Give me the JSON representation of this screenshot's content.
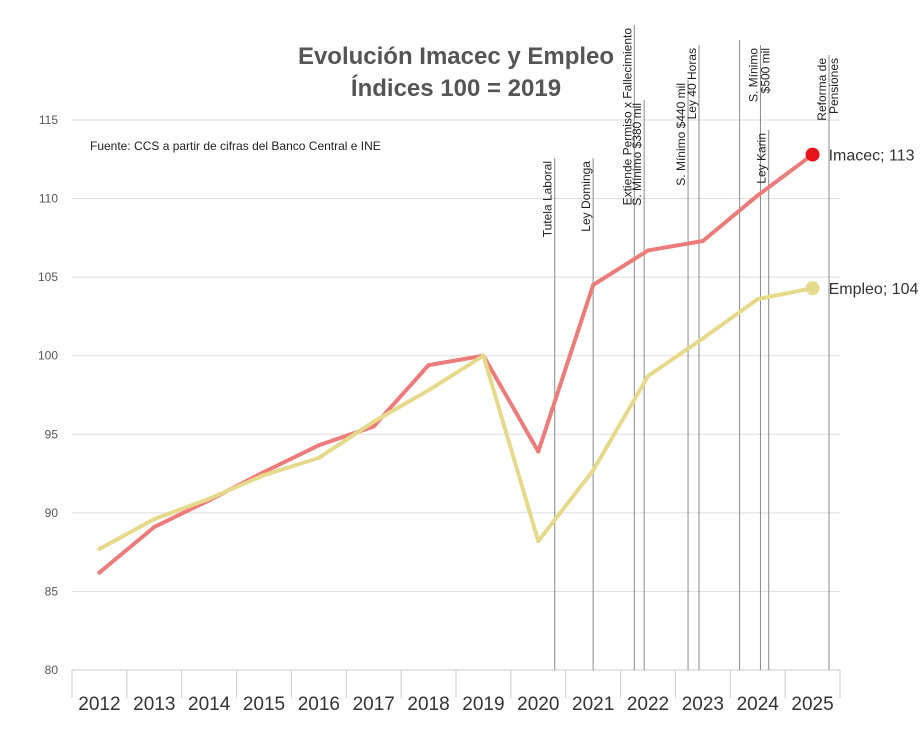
{
  "chart_data": {
    "type": "line",
    "title": [
      "Evolución Imacec y Empleo",
      "Índices 100 = 2019"
    ],
    "source_note": "Fuente: CCS a partir de cifras del Banco Central e INE",
    "ylim": [
      80,
      115
    ],
    "yticks": [
      "80",
      "85",
      "90",
      "95",
      "100",
      "105",
      "110",
      "115"
    ],
    "xlim": [
      2011.5,
      2025.5
    ],
    "year_labels": [
      "2012",
      "2013",
      "2014",
      "2015",
      "2016",
      "2017",
      "2018",
      "2019",
      "2020",
      "2021",
      "2022",
      "2023",
      "2024",
      "2025"
    ],
    "grid": true,
    "series": [
      {
        "name": "Imacec",
        "color": "#ec7b7b",
        "endpoint_color": "#e8141b",
        "end_label": "Imacec; 113",
        "x": [
          2012,
          2013,
          2014,
          2015,
          2016,
          2017,
          2018,
          2019,
          2020,
          2021,
          2022,
          2023,
          2024,
          2025
        ],
        "values": [
          86.2,
          89.1,
          90.8,
          92.6,
          94.3,
          95.5,
          99.4,
          100.0,
          93.9,
          104.5,
          106.7,
          107.3,
          110.2,
          112.8
        ]
      },
      {
        "name": "Empleo",
        "color": "#e5da8c",
        "endpoint_color": "#e5da8c",
        "end_label": "Empleo; 104",
        "x": [
          2012,
          2013,
          2014,
          2015,
          2016,
          2017,
          2018,
          2019,
          2020,
          2021,
          2022,
          2023,
          2024,
          2025
        ],
        "values": [
          87.7,
          89.6,
          90.9,
          92.4,
          93.5,
          95.8,
          97.8,
          100.0,
          88.2,
          92.7,
          98.7,
          101.1,
          103.6,
          104.3
        ]
      }
    ],
    "events": [
      {
        "label": "Tutela Laboral",
        "x": 2020.3
      },
      {
        "label": "Ley Dominga",
        "x": 2021.0
      },
      {
        "label": "Extiende Permiso x Fallecimiento",
        "x": 2021.75
      },
      {
        "label": "S. Mínimo $380 mil",
        "x": 2021.93
      },
      {
        "label": "S. Mínimo $440 mil",
        "x": 2022.73
      },
      {
        "label": "Ley 40 Horas",
        "x": 2022.93
      },
      {
        "label": "",
        "x": 2023.67
      },
      {
        "label": "S. Mínimo\n$500 mil",
        "x": 2024.05
      },
      {
        "label": "Ley Karin",
        "x": 2024.2
      },
      {
        "label": "Reforma de\nPensiones",
        "x": 2025.3
      }
    ]
  }
}
